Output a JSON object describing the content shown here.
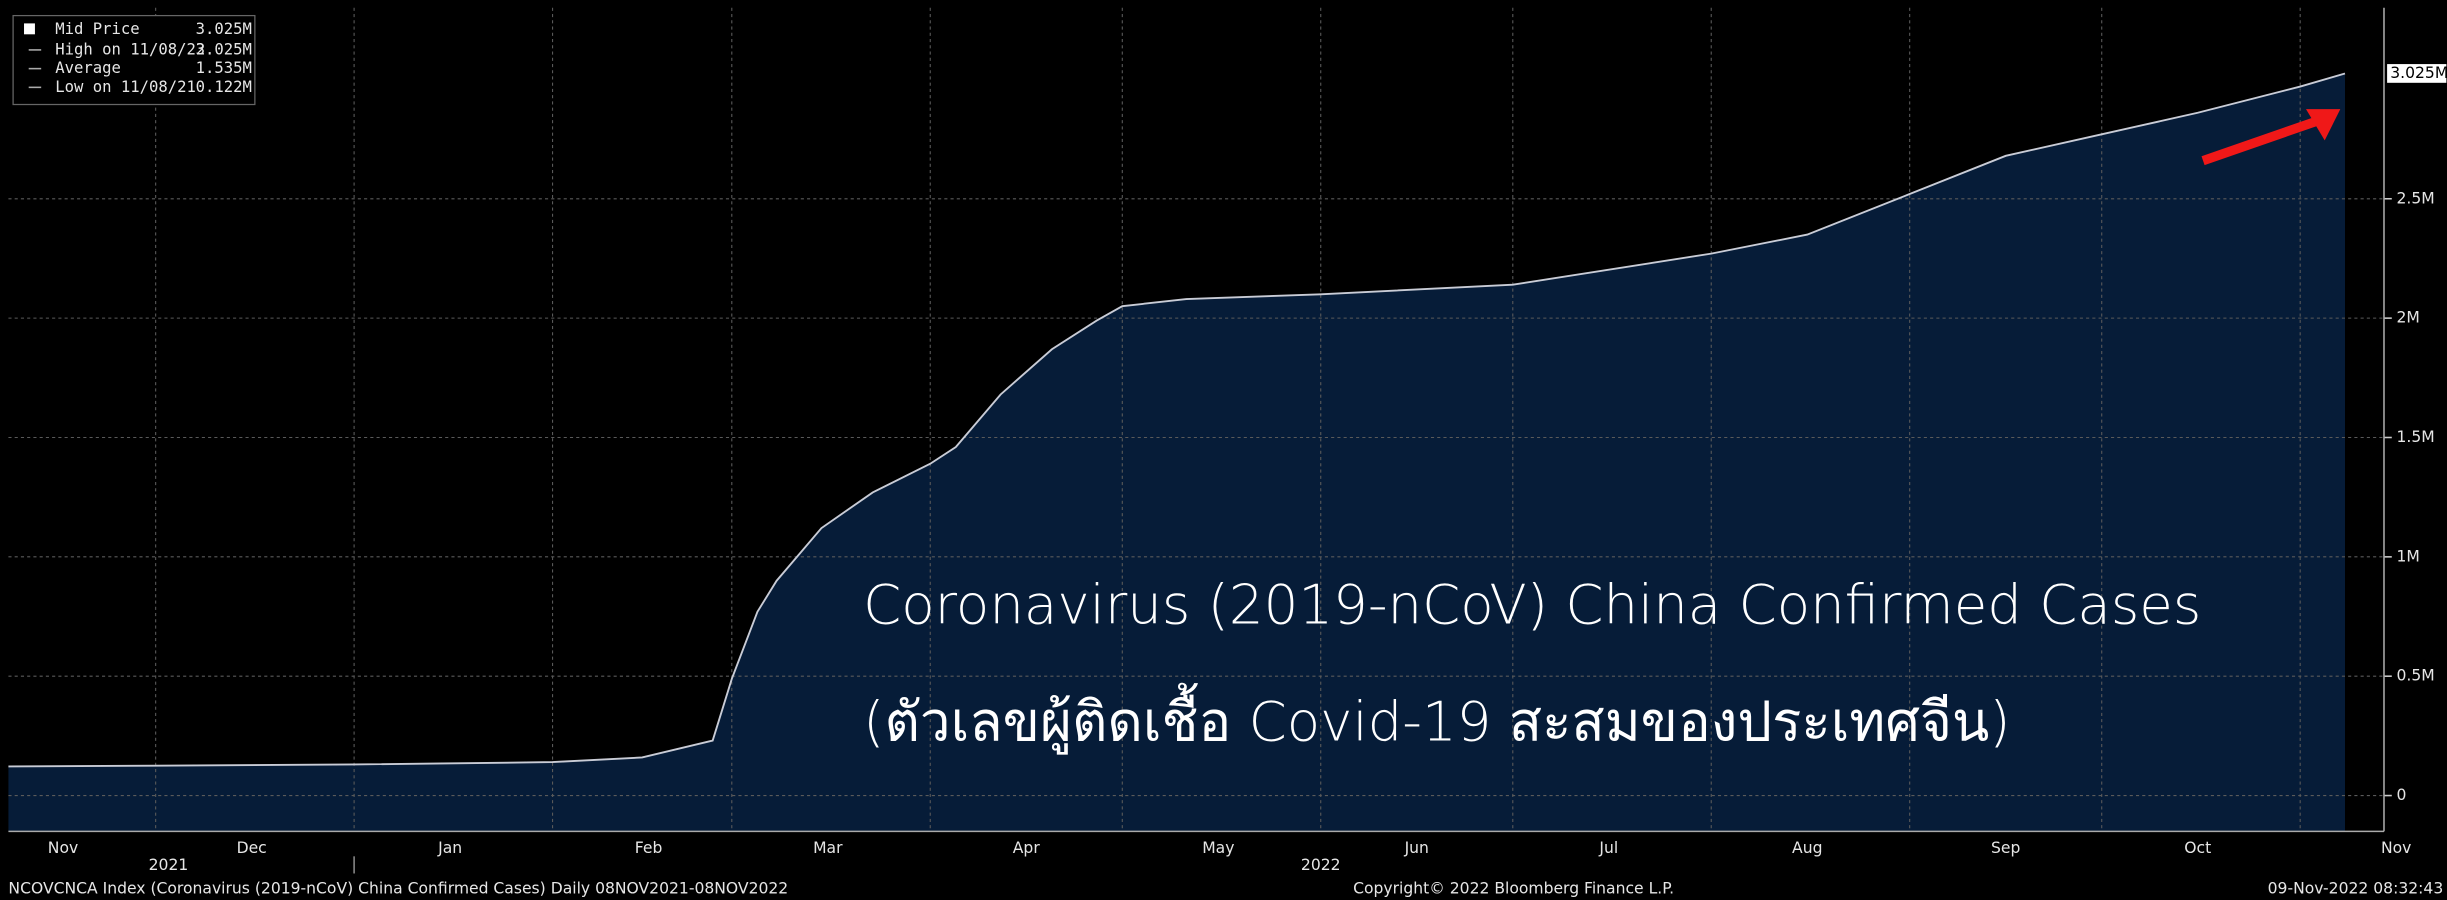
{
  "chart_data": {
    "type": "area",
    "annotation_lines": [
      "Coronavirus (2019-nCoV) China Confirmed Cases",
      "(ตัวเลขผู้ติดเชื้อ Covid-19 สะสมของประเทศจีน)"
    ],
    "x": [
      "2021-11-08",
      "2021-12-01",
      "2022-01-01",
      "2022-02-01",
      "2022-02-15",
      "2022-02-26",
      "2022-03-01",
      "2022-03-05",
      "2022-03-08",
      "2022-03-15",
      "2022-03-23",
      "2022-04-01",
      "2022-04-05",
      "2022-04-12",
      "2022-04-20",
      "2022-04-27",
      "2022-05-01",
      "2022-05-11",
      "2022-06-01",
      "2022-07-01",
      "2022-08-01",
      "2022-08-16",
      "2022-09-01",
      "2022-09-16",
      "2022-10-01",
      "2022-10-16",
      "2022-11-01",
      "2022-11-08"
    ],
    "series": [
      {
        "name": "Mid Price",
        "color": "#c9ccd6",
        "fill": "#061c38",
        "values": [
          0.122,
          0.125,
          0.13,
          0.14,
          0.16,
          0.23,
          0.49,
          0.77,
          0.9,
          1.12,
          1.27,
          1.39,
          1.46,
          1.68,
          1.87,
          1.99,
          2.05,
          2.08,
          2.1,
          2.14,
          2.27,
          2.35,
          2.52,
          2.68,
          2.77,
          2.86,
          2.97,
          3.025
        ],
        "last_label": "3.025M"
      }
    ],
    "legend_rows": [
      {
        "label": "High on 11/08/22",
        "value": "3.025M"
      },
      {
        "label": "Average",
        "value": "1.535M"
      },
      {
        "label": "Low on 11/08/21",
        "value": "0.122M"
      }
    ],
    "legend_value": "3.025M",
    "xlim": [
      "2021-11-08",
      "2022-11-08"
    ],
    "xticks": [
      {
        "value": "2021-11-01",
        "label": "Nov"
      },
      {
        "value": "2021-12-01",
        "label": "Dec"
      },
      {
        "value": "2022-01-01",
        "label": "Jan"
      },
      {
        "value": "2022-02-01",
        "label": "Feb"
      },
      {
        "value": "2022-03-01",
        "label": "Mar"
      },
      {
        "value": "2022-04-01",
        "label": "Apr"
      },
      {
        "value": "2022-05-01",
        "label": "May"
      },
      {
        "value": "2022-06-01",
        "label": "Jun"
      },
      {
        "value": "2022-07-01",
        "label": "Jul"
      },
      {
        "value": "2022-08-01",
        "label": "Aug"
      },
      {
        "value": "2022-09-01",
        "label": "Sep"
      },
      {
        "value": "2022-10-01",
        "label": "Oct"
      },
      {
        "value": "2022-11-01",
        "label": "Nov"
      }
    ],
    "year_labels": [
      {
        "value": "2021-12-03",
        "label": "2021"
      },
      {
        "value": "2022-06-01",
        "label": "2022"
      }
    ],
    "ylim": [
      -0.15,
      3.3
    ],
    "yticks": [
      0,
      {
        "value": 0.5,
        "label": "0.5M"
      },
      {
        "value": 1,
        "label": "1M"
      },
      {
        "value": 1.5,
        "label": "1.5M"
      },
      {
        "value": 2,
        "label": "2M"
      },
      {
        "value": 2.5,
        "label": "2.5M"
      }
    ],
    "grid": true,
    "footer": {
      "left": "NCOVCNCA Index (Coronavirus (2019-nCoV) China Confirmed Cases)  Daily 08NOV2021-08NOV2022",
      "center": "Copyright© 2022 Bloomberg Finance L.P.",
      "right": "09-Nov-2022 08:32:43"
    }
  }
}
